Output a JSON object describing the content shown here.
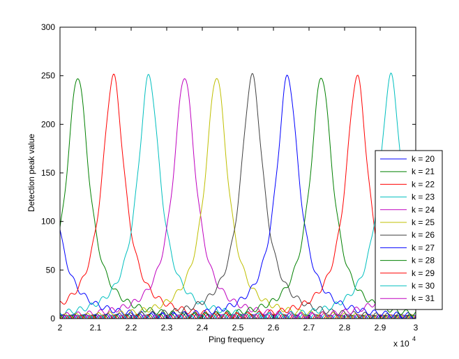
{
  "chart_data": {
    "type": "line",
    "title": "",
    "xlabel": "Ping frequency",
    "ylabel": "Detection peak value",
    "x_multiplier_label": "x 10",
    "x_multiplier_exponent": "4",
    "xlim": [
      2.0,
      3.0
    ],
    "ylim": [
      0,
      300
    ],
    "x_ticks": [
      "2",
      "2.1",
      "2.2",
      "2.3",
      "2.4",
      "2.5",
      "2.6",
      "2.7",
      "2.8",
      "2.9",
      "3"
    ],
    "y_ticks": [
      "0",
      "50",
      "100",
      "150",
      "200",
      "250",
      "300"
    ],
    "grid": false,
    "legend_position": "right",
    "peak_value": 250,
    "series": [
      {
        "name": "k = 20",
        "color": "#0000ff",
        "peak": 1.95
      },
      {
        "name": "k = 21",
        "color": "#008000",
        "peak": 2.05
      },
      {
        "name": "k = 22",
        "color": "#ff0000",
        "peak": 2.15
      },
      {
        "name": "k = 23",
        "color": "#00bfbf",
        "peak": 2.25
      },
      {
        "name": "k = 24",
        "color": "#bf00bf",
        "peak": 2.35
      },
      {
        "name": "k = 25",
        "color": "#bfbf00",
        "peak": 2.44
      },
      {
        "name": "k = 26",
        "color": "#404040",
        "peak": 2.54
      },
      {
        "name": "k = 27",
        "color": "#0000ff",
        "peak": 2.64
      },
      {
        "name": "k = 28",
        "color": "#008000",
        "peak": 2.735
      },
      {
        "name": "k = 29",
        "color": "#ff0000",
        "peak": 2.835
      },
      {
        "name": "k = 30",
        "color": "#00bfbf",
        "peak": 2.93
      },
      {
        "name": "k = 31",
        "color": "#bf00bf",
        "peak": 3.03
      }
    ]
  }
}
